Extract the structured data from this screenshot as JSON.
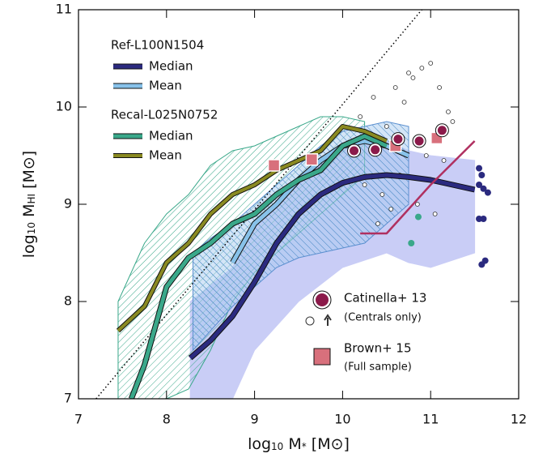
{
  "chart_data": {
    "type": "line",
    "x_label": [
      "log",
      "10",
      " M",
      "*",
      " [M⊙]"
    ],
    "y_label": [
      "log",
      "10",
      " M",
      "HI",
      " [M⊙]"
    ],
    "xlim": [
      7,
      12
    ],
    "xticks": [
      7,
      8,
      9,
      10,
      11,
      12
    ],
    "ylim": [
      7,
      11
    ],
    "yticks": [
      7,
      8,
      9,
      10,
      11
    ],
    "bands": [
      {
        "color": "#c9cdf6",
        "x": [
          8.27,
          8.75,
          9.0,
          9.5,
          10.0,
          10.5,
          10.75,
          11.0,
          11.5
        ],
        "lower": [
          7.0,
          7.0,
          7.5,
          8.0,
          8.35,
          8.5,
          8.4,
          8.35,
          8.5
        ],
        "upper": [
          8.0,
          8.35,
          8.8,
          9.25,
          9.6,
          9.65,
          9.55,
          9.5,
          9.45
        ]
      },
      {
        "color": "#3aa88a",
        "x": [
          7.45,
          7.75,
          8.0,
          8.25,
          8.5,
          8.75,
          9.0,
          9.25,
          9.5,
          9.75,
          10.0,
          10.25
        ],
        "lower": [
          7.0,
          7.0,
          7.0,
          7.1,
          7.5,
          8.0,
          8.3,
          8.5,
          8.7,
          8.9,
          9.1,
          9.3
        ],
        "upper": [
          8.0,
          8.6,
          8.9,
          9.1,
          9.4,
          9.55,
          9.6,
          9.7,
          9.8,
          9.9,
          9.9,
          9.85
        ]
      },
      {
        "color": "#5a8fcf",
        "x": [
          8.3,
          8.5,
          8.75,
          9.0,
          9.25,
          9.5,
          9.75,
          10.0,
          10.25,
          10.5,
          10.75
        ],
        "lower": [
          7.5,
          7.7,
          7.95,
          8.15,
          8.35,
          8.45,
          8.5,
          8.55,
          8.6,
          8.8,
          9.0
        ],
        "upper": [
          8.5,
          8.65,
          8.8,
          9.0,
          9.2,
          9.4,
          9.6,
          9.75,
          9.8,
          9.85,
          9.8
        ]
      }
    ],
    "reference_line": {
      "x": [
        7.2,
        10.9
      ],
      "y": [
        7.0,
        11.0
      ]
    },
    "series": [
      {
        "group": "Ref-L100N1504",
        "name": "Median",
        "color": "#2b2a7f",
        "width": 5,
        "x": [
          8.27,
          8.5,
          8.75,
          9.0,
          9.25,
          9.5,
          9.75,
          10.0,
          10.25,
          10.5,
          10.75,
          11.0,
          11.25,
          11.5
        ],
        "values": [
          7.42,
          7.6,
          7.85,
          8.2,
          8.6,
          8.9,
          9.1,
          9.22,
          9.28,
          9.3,
          9.28,
          9.25,
          9.2,
          9.15
        ]
      },
      {
        "group": "Ref-L100N1504",
        "name": "Mean",
        "color": "#88c2ea",
        "width": 5,
        "x": [
          8.75,
          9.0,
          9.25,
          9.5,
          9.75,
          10.0,
          10.25,
          10.5,
          10.75
        ],
        "values": [
          8.4,
          8.8,
          9.0,
          9.25,
          9.45,
          9.6,
          9.65,
          9.6,
          9.5
        ]
      },
      {
        "group": "Recal-L025N0752",
        "name": "Median",
        "color": "#3aa88a",
        "width": 5,
        "x": [
          7.6,
          7.75,
          8.0,
          8.25,
          8.5,
          8.75,
          9.0,
          9.25,
          9.5,
          9.75,
          10.0,
          10.25,
          10.5
        ],
        "values": [
          7.0,
          7.35,
          8.15,
          8.45,
          8.6,
          8.8,
          8.9,
          9.1,
          9.25,
          9.35,
          9.6,
          9.7,
          9.6
        ]
      },
      {
        "group": "Recal-L025N0752",
        "name": "Mean",
        "color": "#8a8a22",
        "width": 4,
        "x": [
          7.45,
          7.75,
          8.0,
          8.25,
          8.5,
          8.75,
          9.0,
          9.25,
          9.5,
          9.75,
          10.0,
          10.25,
          10.5
        ],
        "values": [
          7.7,
          7.95,
          8.4,
          8.6,
          8.9,
          9.1,
          9.2,
          9.35,
          9.45,
          9.55,
          9.8,
          9.75,
          9.65
        ]
      }
    ],
    "stacking_line": {
      "color": "#b03060",
      "x": [
        10.2,
        10.5,
        11.0,
        11.5
      ],
      "values": [
        8.7,
        8.7,
        9.2,
        9.65
      ]
    },
    "catinella": {
      "name": "Catinella+ 13",
      "note": "(Centrals only)",
      "color": "#8b1a4a",
      "x": [
        10.13,
        10.37,
        10.63,
        10.87,
        11.13
      ],
      "values": [
        9.55,
        9.56,
        9.67,
        9.65,
        9.76
      ]
    },
    "brown": {
      "name": "Brown+ 15",
      "note": "(Full sample)",
      "color": "#d8707c",
      "x": [
        9.22,
        9.65,
        10.6,
        11.07
      ],
      "values": [
        9.4,
        9.46,
        9.6,
        9.68
      ]
    },
    "open_points": {
      "x": [
        10.2,
        10.35,
        10.5,
        10.6,
        10.7,
        10.8,
        10.9,
        11.0,
        11.1,
        11.2,
        10.25,
        10.45,
        10.65,
        10.85,
        11.05,
        11.15,
        10.55,
        10.75,
        10.95,
        11.25,
        10.3,
        10.4
      ],
      "values": [
        9.9,
        10.1,
        9.8,
        10.2,
        10.05,
        10.3,
        10.4,
        10.45,
        10.2,
        9.95,
        9.2,
        9.1,
        9.3,
        9.0,
        8.9,
        9.45,
        8.95,
        10.35,
        9.5,
        9.85,
        9.7,
        8.8
      ]
    },
    "side_points": {
      "color": "#2b2a7f",
      "x": [
        11.55,
        11.58,
        11.6,
        11.65,
        11.55,
        11.6,
        11.62,
        11.58,
        11.55
      ],
      "values": [
        9.37,
        9.3,
        9.16,
        9.12,
        8.85,
        8.85,
        8.42,
        8.38,
        9.2
      ]
    },
    "teal_points": {
      "color": "#3aa88a",
      "x": [
        10.86,
        10.78
      ],
      "values": [
        8.87,
        8.6
      ]
    }
  }
}
